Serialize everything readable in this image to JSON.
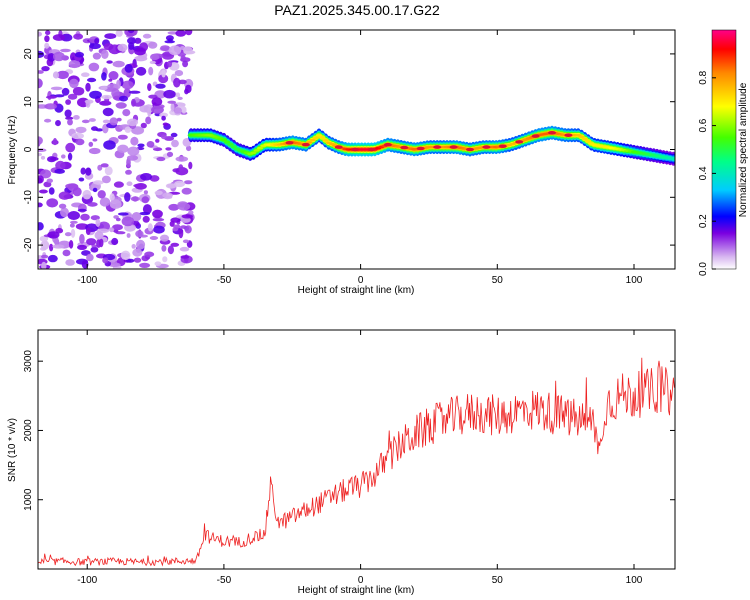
{
  "figure_title": "PAZ1.2025.345.00.17.G22",
  "colors": {
    "snr_line": "#ee2222",
    "signal_core": "#dd1133",
    "noise": "#8844ee"
  },
  "chart_data": [
    {
      "type": "heatmap",
      "xlabel": "Height of straight line (km)",
      "ylabel": "Frequency (Hz)",
      "xlim": [
        -118,
        115
      ],
      "ylim": [
        -25,
        25
      ],
      "xticks": [
        -100,
        -50,
        0,
        50,
        100
      ],
      "yticks": [
        -20,
        -10,
        0,
        10,
        20
      ],
      "noise_region_x": [
        -118,
        -62
      ],
      "ridge": {
        "x": [
          -62,
          -55,
          -50,
          -45,
          -40,
          -35,
          -30,
          -25,
          -20,
          -15,
          -12,
          -8,
          -5,
          0,
          5,
          10,
          15,
          20,
          25,
          30,
          35,
          40,
          45,
          50,
          55,
          60,
          65,
          70,
          75,
          80,
          85,
          90,
          95,
          100,
          105,
          110,
          115
        ],
        "frequency": [
          3,
          3,
          2,
          0,
          -1,
          1,
          1,
          1.5,
          1,
          3,
          1.5,
          0.5,
          0,
          0,
          0,
          1,
          0.5,
          0,
          0.5,
          0.5,
          0.5,
          0,
          0.5,
          0.5,
          1,
          2,
          3,
          3.5,
          3,
          3,
          1,
          0.5,
          0,
          -0.5,
          -1,
          -1.5,
          -2
        ],
        "amplitude": [
          0.55,
          0.6,
          0.55,
          0.5,
          0.6,
          0.65,
          0.75,
          0.85,
          0.8,
          0.7,
          0.75,
          0.8,
          0.9,
          0.95,
          0.95,
          0.85,
          0.8,
          0.85,
          0.8,
          0.8,
          0.85,
          0.8,
          0.8,
          0.85,
          0.75,
          0.8,
          0.85,
          0.85,
          0.8,
          0.75,
          0.7,
          0.7,
          0.65,
          0.55,
          0.5,
          0.45,
          0.4
        ]
      },
      "colorbar": {
        "label": "Normalized spectral amplitude",
        "range": [
          0,
          1
        ],
        "ticks": [
          "0.0",
          "0.2",
          "0.4",
          "0.6",
          "0.8"
        ]
      }
    },
    {
      "type": "line",
      "xlabel": "Height of straight line (km)",
      "ylabel": "SNR (10 * v/v)",
      "xlim": [
        -118,
        115
      ],
      "ylim": [
        0,
        3450
      ],
      "xticks": [
        -100,
        -50,
        0,
        50,
        100
      ],
      "yticks": [
        1000,
        2000,
        3000
      ],
      "series": [
        {
          "name": "SNR",
          "x": [
            -118,
            -110,
            -100,
            -90,
            -80,
            -70,
            -60,
            -57,
            -55,
            -50,
            -45,
            -40,
            -35,
            -33,
            -30,
            -25,
            -20,
            -15,
            -10,
            -5,
            0,
            5,
            10,
            15,
            20,
            25,
            30,
            35,
            40,
            45,
            50,
            55,
            60,
            65,
            70,
            75,
            80,
            85,
            88,
            90,
            95,
            100,
            105,
            110,
            115
          ],
          "values": [
            100,
            110,
            100,
            110,
            100,
            110,
            120,
            500,
            450,
            400,
            380,
            450,
            500,
            1200,
            650,
            750,
            850,
            950,
            1050,
            1150,
            1200,
            1350,
            1600,
            1800,
            1950,
            2050,
            2150,
            2200,
            2250,
            2250,
            2200,
            2250,
            2300,
            2300,
            2250,
            2200,
            2150,
            2100,
            1700,
            2400,
            2500,
            2500,
            2550,
            2600,
            2500
          ]
        }
      ]
    }
  ]
}
